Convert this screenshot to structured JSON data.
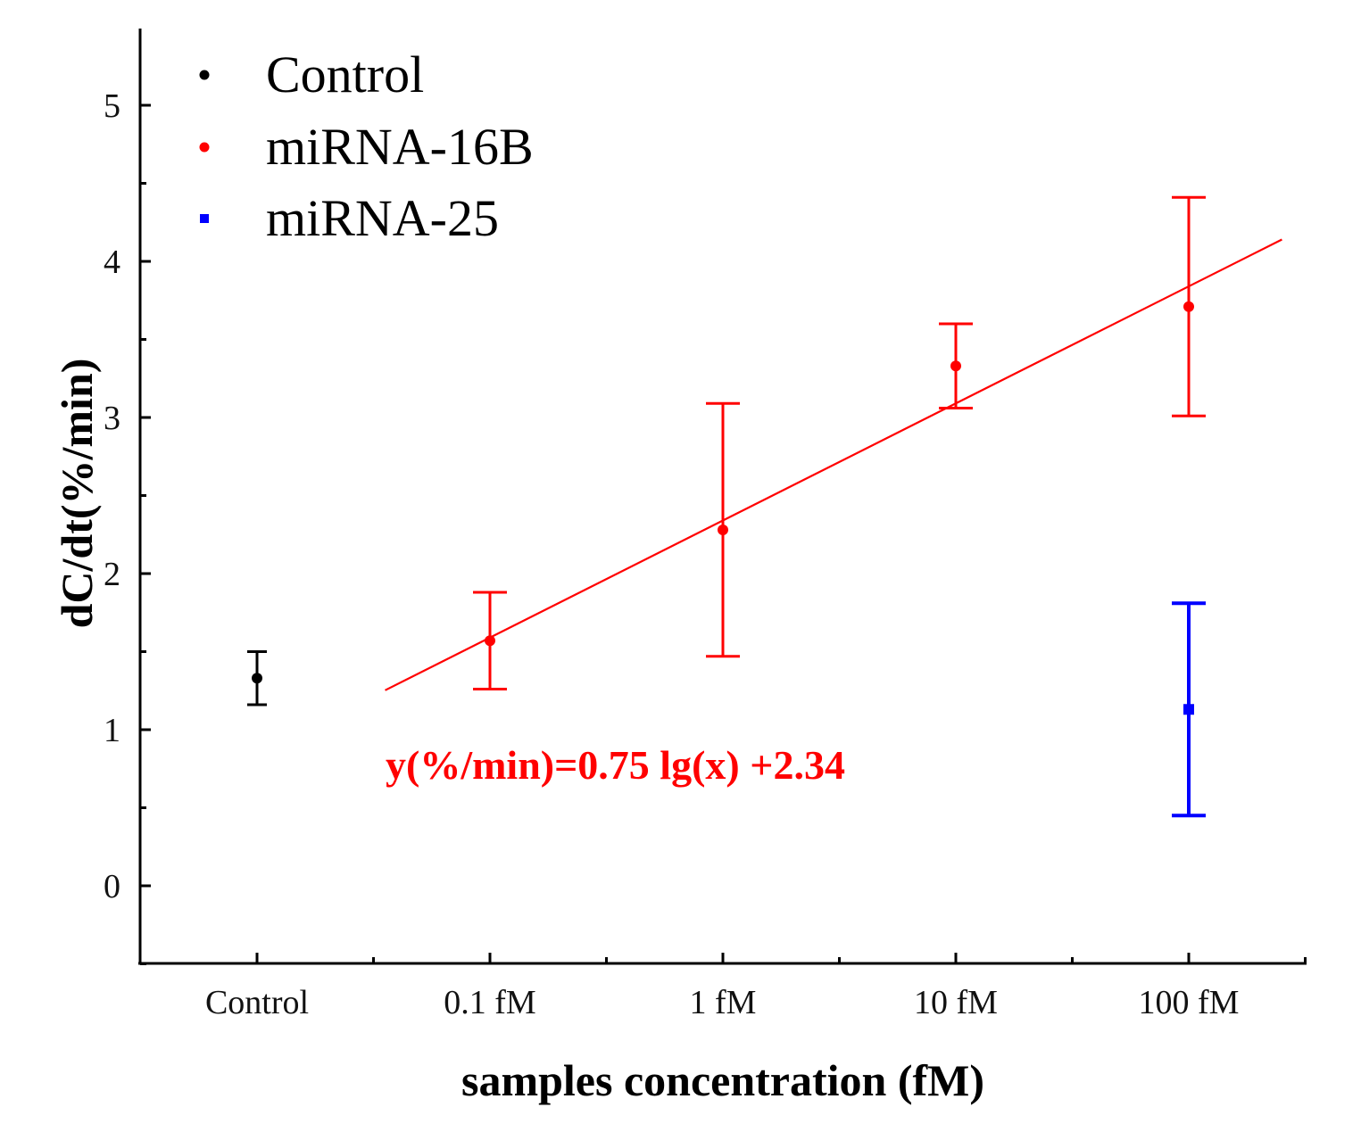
{
  "chart_data": {
    "type": "scatter",
    "xlabel": "samples concentration (fM)",
    "ylabel": "dC/dt(%/min)",
    "categories": [
      "Control",
      "0.1 fM",
      "1 fM",
      "10 fM",
      "100 fM"
    ],
    "ylim": [
      -0.5,
      5.45
    ],
    "yticks": [
      "0",
      "1",
      "2",
      "3",
      "4",
      "5"
    ],
    "grid": false,
    "legend_position": "top-left",
    "series": [
      {
        "name": "Control",
        "color": "#000000",
        "marker": "circle",
        "points": [
          {
            "category": "Control",
            "y": 1.33,
            "err_low": 1.16,
            "err_high": 1.5
          }
        ]
      },
      {
        "name": "miRNA-16B",
        "color": "#ff0000",
        "marker": "circle",
        "points": [
          {
            "category": "0.1 fM",
            "y": 1.57,
            "err_low": 1.26,
            "err_high": 1.88
          },
          {
            "category": "1 fM",
            "y": 2.28,
            "err_low": 1.47,
            "err_high": 3.09
          },
          {
            "category": "10 fM",
            "y": 3.33,
            "err_low": 3.06,
            "err_high": 3.6
          },
          {
            "category": "100 fM",
            "y": 3.71,
            "err_low": 3.01,
            "err_high": 4.41
          }
        ]
      },
      {
        "name": "miRNA-25",
        "color": "#0000ff",
        "marker": "square",
        "points": [
          {
            "category": "100 fM",
            "y": 1.13,
            "err_low": 0.45,
            "err_high": 1.81
          }
        ]
      }
    ],
    "fit": {
      "series": "miRNA-16B",
      "slope": 0.75,
      "intercept": 2.34,
      "lg_x_range": [
        -1.45,
        2.4
      ],
      "equation": "y(%/min)=0.75 lg(x) +2.34",
      "color": "#ff0000"
    }
  }
}
